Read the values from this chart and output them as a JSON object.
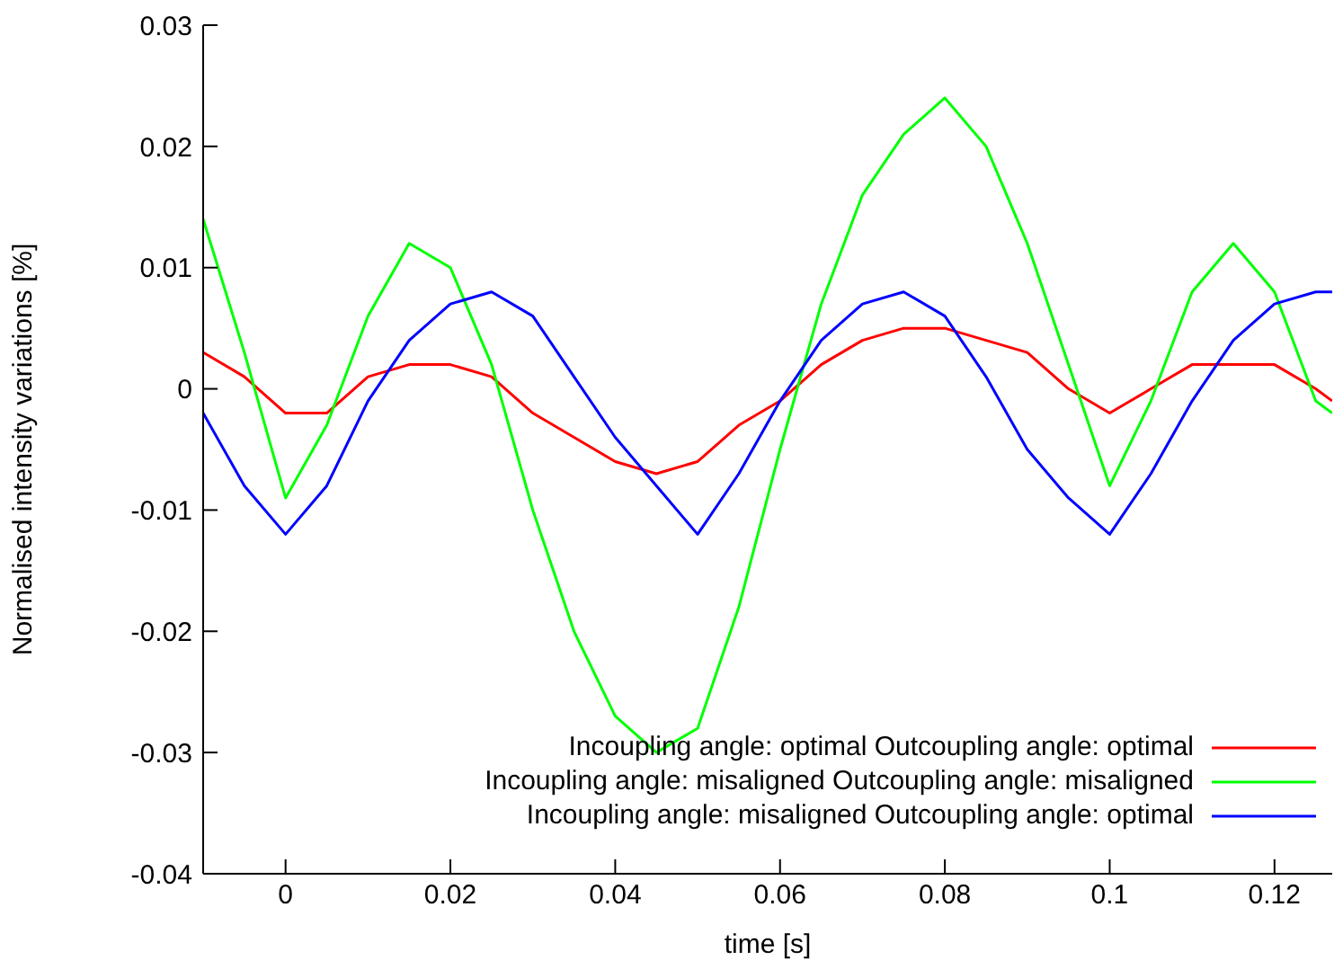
{
  "chart_data": {
    "type": "line",
    "xlabel": "time [s]",
    "ylabel": "Normalised intensity variations [%]",
    "x": [
      -0.01,
      -0.005,
      0,
      0.005,
      0.01,
      0.015,
      0.02,
      0.025,
      0.03,
      0.035,
      0.04,
      0.045,
      0.05,
      0.055,
      0.06,
      0.065,
      0.07,
      0.075,
      0.08,
      0.085,
      0.09,
      0.095,
      0.1,
      0.105,
      0.11,
      0.115,
      0.12,
      0.125,
      0.127
    ],
    "series": [
      {
        "name": "Incoupling angle: optimal Outcoupling angle: optimal",
        "color": "#ff0000",
        "values": [
          0.003,
          0.001,
          -0.002,
          -0.002,
          0.001,
          0.002,
          0.002,
          0.001,
          -0.002,
          -0.004,
          -0.006,
          -0.007,
          -0.006,
          -0.003,
          -0.001,
          0.002,
          0.004,
          0.005,
          0.005,
          0.004,
          0.003,
          0,
          -0.002,
          0,
          0.002,
          0.002,
          0.002,
          0,
          -0.001
        ]
      },
      {
        "name": "Incoupling angle: misaligned Outcoupling angle: misaligned",
        "color": "#00ff00",
        "values": [
          0.014,
          0.003,
          -0.009,
          -0.003,
          0.006,
          0.012,
          0.01,
          0.002,
          -0.01,
          -0.02,
          -0.027,
          -0.03,
          -0.028,
          -0.018,
          -0.005,
          0.007,
          0.016,
          0.021,
          0.024,
          0.02,
          0.012,
          0.002,
          -0.008,
          -0.001,
          0.008,
          0.012,
          0.008,
          -0.001,
          -0.002
        ]
      },
      {
        "name": "Incoupling angle: misaligned Outcoupling angle: optimal",
        "color": "#0000ff",
        "values": [
          -0.002,
          -0.008,
          -0.012,
          -0.008,
          -0.001,
          0.004,
          0.007,
          0.008,
          0.006,
          0.001,
          -0.004,
          -0.008,
          -0.012,
          -0.007,
          -0.001,
          0.004,
          0.007,
          0.008,
          0.006,
          0.001,
          -0.005,
          -0.009,
          -0.012,
          -0.007,
          -0.001,
          0.004,
          0.007,
          0.008,
          0.008
        ]
      }
    ],
    "xlim": [
      -0.01,
      0.127
    ],
    "xticks": [
      0,
      0.02,
      0.04,
      0.06,
      0.08,
      0.1,
      0.12
    ],
    "ylim": [
      -0.04,
      0.03
    ],
    "yticks": [
      -0.04,
      -0.03,
      -0.02,
      -0.01,
      0,
      0.01,
      0.02,
      0.03
    ],
    "grid": false,
    "legend": "bottom right",
    "marker": "none",
    "line_style": "solid"
  }
}
